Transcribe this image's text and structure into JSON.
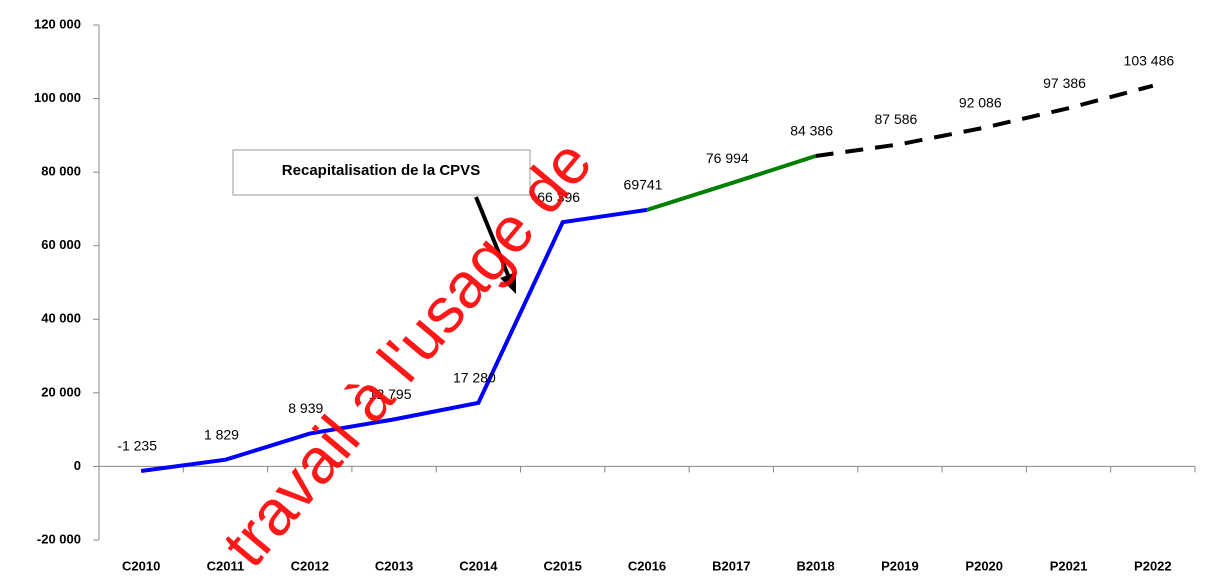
{
  "chart_data": {
    "type": "line",
    "categories": [
      "C2010",
      "C2011",
      "C2012",
      "C2013",
      "C2014",
      "C2015",
      "C2016",
      "B2017",
      "B2018",
      "P2019",
      "P2020",
      "P2021",
      "P2022"
    ],
    "series": [
      {
        "color": "#0000ff",
        "dashed": false,
        "values": [
          -1235,
          1829,
          8939,
          12795,
          17280,
          66396,
          69741,
          null,
          null,
          null,
          null,
          null,
          null
        ],
        "value_labels": [
          "-1 235",
          "1 829",
          "8 939",
          "12 795",
          "17 280",
          "66 396",
          "69741",
          null,
          null,
          null,
          null,
          null,
          null
        ]
      },
      {
        "color": "#008000",
        "dashed": false,
        "values": [
          null,
          null,
          null,
          null,
          null,
          null,
          69741,
          76994,
          84386,
          null,
          null,
          null,
          null
        ],
        "value_labels": [
          null,
          null,
          null,
          null,
          null,
          null,
          null,
          "76 994",
          "84 386",
          null,
          null,
          null,
          null
        ]
      },
      {
        "color": "#000000",
        "dashed": true,
        "values": [
          null,
          null,
          null,
          null,
          null,
          null,
          null,
          null,
          84386,
          87586,
          92086,
          97386,
          103486
        ],
        "value_labels": [
          null,
          null,
          null,
          null,
          null,
          null,
          null,
          null,
          null,
          "87 586",
          "92 086",
          "97 386",
          "103 486"
        ]
      }
    ],
    "ylim": [
      -20000,
      120000
    ],
    "yticks": [
      {
        "value": -20000,
        "label": "-20 000"
      },
      0,
      {
        "value": 20000,
        "label": "20 000"
      },
      {
        "value": 40000,
        "label": "40 000"
      },
      {
        "value": 60000,
        "label": "60 000"
      },
      {
        "value": 80000,
        "label": "80 000"
      },
      {
        "value": 100000,
        "label": "100 000"
      },
      {
        "value": 120000,
        "label": "120 000"
      }
    ],
    "annotation": "Recapitalisation de la CPVS",
    "watermark": "travail à l'usage de"
  }
}
